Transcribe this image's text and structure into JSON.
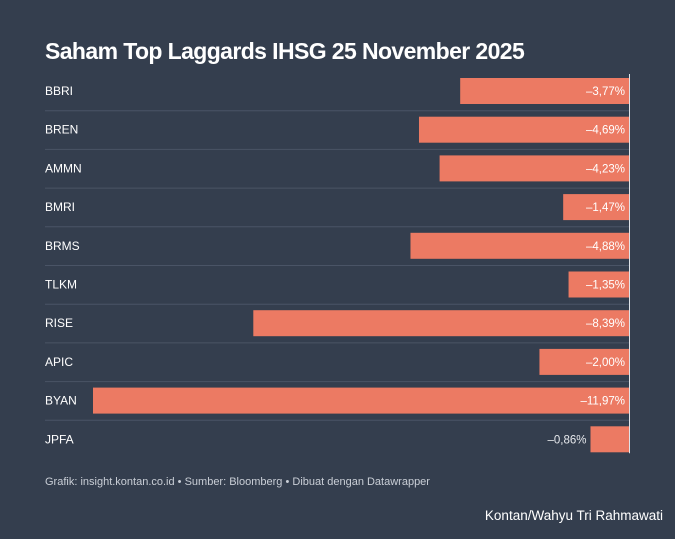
{
  "chart_data": {
    "type": "bar",
    "orientation": "horizontal",
    "title": "Saham Top Laggards IHSG 25 November 2025",
    "categories": [
      "BBRI",
      "BREN",
      "AMMN",
      "BMRI",
      "BRMS",
      "TLKM",
      "RISE",
      "APIC",
      "BYAN",
      "JPFA"
    ],
    "values": [
      -3.77,
      -4.69,
      -4.23,
      -1.47,
      -4.88,
      -1.35,
      -8.39,
      -2.0,
      -11.97,
      -0.86
    ],
    "value_labels": [
      "–3,77%",
      "–4,69%",
      "–4,23%",
      "–1,47%",
      "–4,88%",
      "–1,35%",
      "–8,39%",
      "–2,00%",
      "–11,97%",
      "–0,86%"
    ],
    "unit": "%",
    "xlim": [
      -11.97,
      0
    ],
    "grid": false,
    "bar_color": "#ec7a63",
    "background_color": "#343e4e"
  },
  "footer": {
    "source": "Grafik: insight.kontan.co.id • Sumber: Bloomberg • Dibuat dengan Datawrapper",
    "credit": "Kontan/Wahyu Tri Rahmawati"
  }
}
